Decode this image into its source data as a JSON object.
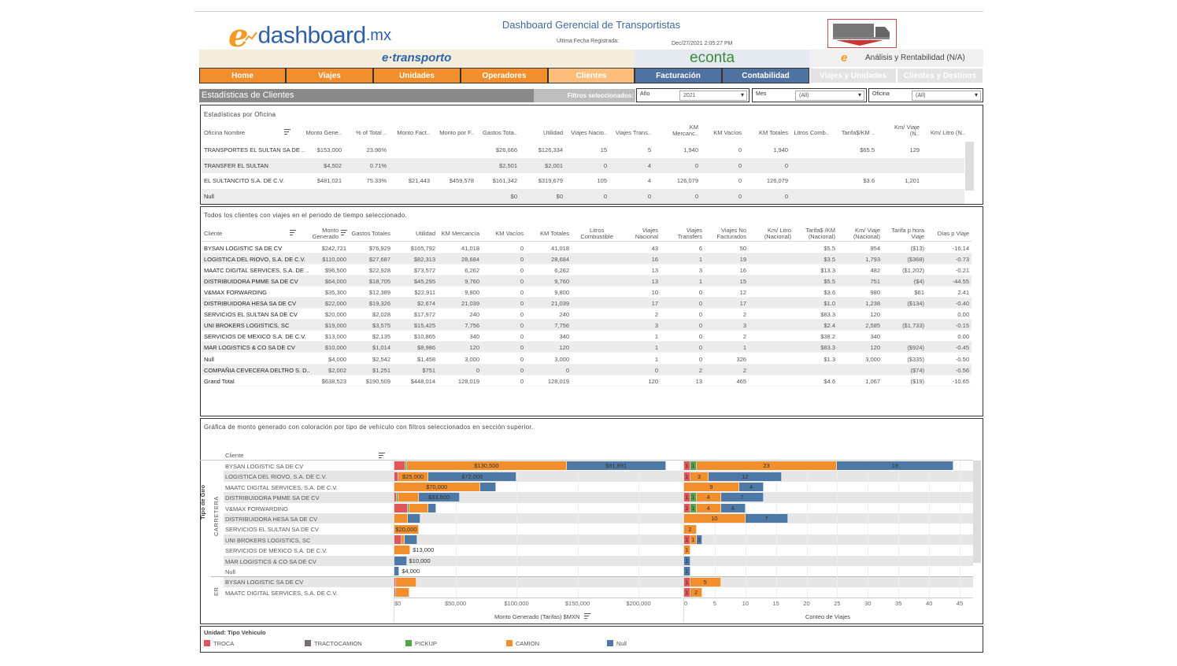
{
  "header": {
    "logo": {
      "e": "e",
      "name": "dashboard",
      "tld": ".mx"
    },
    "title": "Dashboard Gerencial de Transportistas",
    "last_date_label": "Última Fecha Registrada:",
    "last_date_value": "Dec/27/2021 2:05:27 PM",
    "bands": {
      "etransporto": "e·transporto",
      "econta": "econta",
      "analisis": "Análisis y Rentabilidad (N/A)"
    }
  },
  "nav": [
    {
      "label": "Home",
      "color": "#F28E2B",
      "active": false
    },
    {
      "label": "Viajes",
      "color": "#F28E2B",
      "active": false
    },
    {
      "label": "Unidades",
      "color": "#F28E2B",
      "active": false
    },
    {
      "label": "Operadores",
      "color": "#F28E2B",
      "active": false
    },
    {
      "label": "Clientes",
      "color": "#FDBE7C",
      "active": true
    },
    {
      "label": "Facturación",
      "color": "#4F72A0",
      "active": false
    },
    {
      "label": "Contabilidad",
      "color": "#4F72A0",
      "active": false
    },
    {
      "label": "Viajes y Unidades",
      "color": "#E3E3E3",
      "active": false
    },
    {
      "label": "Clientes y Destinos",
      "color": "#E3E3E3",
      "active": false
    }
  ],
  "section": {
    "title": "Estadísticas de Clientes",
    "filters_label": "Filtros seleccionados:",
    "filters": [
      {
        "label": "Año",
        "value": "2021"
      },
      {
        "label": "Mes",
        "value": "(All)"
      },
      {
        "label": "Oficina",
        "value": "(All)"
      }
    ]
  },
  "office_table": {
    "title": "Estadísticas por Oficina",
    "headers": [
      "Oficina Nombre",
      "Monto Gene..",
      "% of Total ..",
      "Monto Fact..",
      "Monto por F..",
      "Gastos Tota..",
      "Utilidad",
      "Viajes Nacio..",
      "Viajes Trans..",
      "KM\nMercanc..",
      "KM Vacíos",
      "KM Totales",
      "Litros Comb..",
      "Tarifa$/KM ..",
      "Km/ Viaje\n(N..",
      "Km/ Litro (N.."
    ],
    "rows": [
      [
        "TRANSPORTES EL SULTAN SA DE ..",
        "$153,000",
        "23.96%",
        "",
        "",
        "$26,666",
        "$126,334",
        "15",
        "5",
        "1,940",
        "0",
        "1,940",
        "",
        "$65.5",
        "129",
        ""
      ],
      [
        "TRANSFER EL SULTAN",
        "$4,502",
        "0.71%",
        "",
        "",
        "$2,501",
        "$2,001",
        "0",
        "4",
        "0",
        "0",
        "0",
        "",
        "",
        "",
        ""
      ],
      [
        "EL SULTANCITO S.A. DE C.V.",
        "$481,021",
        "75.33%",
        "$21,443",
        "$459,578",
        "$161,342",
        "$319,679",
        "105",
        "4",
        "126,079",
        "0",
        "126,079",
        "",
        "$3.6",
        "1,201",
        ""
      ],
      [
        "Null",
        "",
        "",
        "",
        "",
        "$0",
        "$0",
        "0",
        "0",
        "0",
        "0",
        "0",
        "",
        "",
        "",
        ""
      ]
    ]
  },
  "client_table": {
    "title": "Todos los clientes con viajes en el periodo de tiempo seleccionado.",
    "headers": [
      "Cliente",
      "Monto\nGenerado",
      "Gastos Totales",
      "Utilidad",
      "KM Mercancía",
      "KM Vacíos",
      "KM Totales",
      "Litros\nCombustible",
      "Viajes\nNacional",
      "Viajes\nTransfers",
      "Viajes No\nFacturados",
      "Km/ Litro\n(Nacional)",
      "Tarifa$ /KM\n(Nacional)",
      "Km/ Viaje\n(Nacional)",
      "Tarifa p hora\nViaje",
      "Días p Viaje"
    ],
    "rows": [
      [
        "BYSAN LOGISTIC SA DE CV",
        "$242,721",
        "$76,929",
        "$165,792",
        "41,018",
        "0",
        "41,018",
        "",
        "43",
        "6",
        "50",
        "",
        "$5.5",
        "954",
        "($13)",
        "-16.14"
      ],
      [
        "LOGISTICA DEL RIOVO, S.A. DE C.V.",
        "$110,000",
        "$27,687",
        "$82,313",
        "28,684",
        "0",
        "28,684",
        "",
        "16",
        "1",
        "19",
        "",
        "$3.5",
        "1,793",
        "($368)",
        "-0.73"
      ],
      [
        "MAATC DIGITAL SERVICES, S.A. DE ..",
        "$96,500",
        "$22,928",
        "$73,572",
        "6,262",
        "0",
        "6,262",
        "",
        "13",
        "3",
        "16",
        "",
        "$13.3",
        "482",
        "($1,202)",
        "-0.21"
      ],
      [
        "DISTRIBUIDORA PMME SA DE CV",
        "$64,000",
        "$18,705",
        "$45,295",
        "9,760",
        "0",
        "9,760",
        "",
        "13",
        "1",
        "15",
        "",
        "$5.5",
        "751",
        "($4)",
        "-44.55"
      ],
      [
        "V&MAX FORWARDING",
        "$35,300",
        "$12,389",
        "$22,911",
        "9,800",
        "0",
        "9,800",
        "",
        "10",
        "0",
        "12",
        "",
        "$3.6",
        "980",
        "$61",
        "2.41"
      ],
      [
        "DISTRIBUIDORA HESA SA DE CV",
        "$22,000",
        "$19,326",
        "$2,674",
        "21,039",
        "0",
        "21,039",
        "",
        "17",
        "0",
        "17",
        "",
        "$1.0",
        "1,238",
        "($134)",
        "-0.40"
      ],
      [
        "SERVICIOS EL SULTAN SA DE CV",
        "$20,000",
        "$2,028",
        "$17,972",
        "240",
        "0",
        "240",
        "",
        "2",
        "0",
        "2",
        "",
        "$83.3",
        "120",
        "",
        "0.00"
      ],
      [
        "UNI BROKERS LOGISTICS, SC",
        "$19,000",
        "$3,575",
        "$15,425",
        "7,756",
        "0",
        "7,756",
        "",
        "3",
        "0",
        "3",
        "",
        "$2.4",
        "2,585",
        "($1,733)",
        "-0.15"
      ],
      [
        "SERVICIOS DE MEXICO S.A. DE C.V.",
        "$13,000",
        "$2,135",
        "$10,865",
        "340",
        "0",
        "340",
        "",
        "1",
        "0",
        "2",
        "",
        "$38.2",
        "340",
        "",
        "0.00"
      ],
      [
        "MAR LOGISTICS & CO SA DE CV",
        "$10,000",
        "$1,014",
        "$8,986",
        "120",
        "0",
        "120",
        "",
        "1",
        "0",
        "1",
        "",
        "$83.3",
        "120",
        "($924)",
        "-0.45"
      ],
      [
        "Null",
        "$4,000",
        "$2,542",
        "$1,458",
        "3,000",
        "0",
        "3,000",
        "",
        "1",
        "0",
        "326",
        "",
        "$1.3",
        "3,000",
        "($335)",
        "-0.50"
      ],
      [
        "COMPAÑIA CEVECERA DELTRO S. D..",
        "$2,002",
        "$1,251",
        "$751",
        "0",
        "0",
        "0",
        "",
        "0",
        "2",
        "2",
        "",
        "",
        "",
        "($74)",
        "-0.56"
      ],
      [
        "Grand Total",
        "$638,523",
        "$190,509",
        "$448,014",
        "128,019",
        "0",
        "128,019",
        "",
        "120",
        "13",
        "465",
        "",
        "$4.6",
        "1,067",
        "($19)",
        "-10.65"
      ]
    ]
  },
  "chart_panel": {
    "title": "Gráfica de monto generado con coloración por tipo de vehículo con filtros seleccionados en sección superior.",
    "row_header": "Cliente",
    "group_axis_label": "Tipo de Giro",
    "groups": [
      {
        "label": "CARRETERA",
        "rows": 11
      },
      {
        "label": "ER",
        "rows": 2
      }
    ]
  },
  "chart_data": [
    {
      "type": "bar",
      "orientation": "horizontal",
      "stacked": true,
      "xlabel": "Monto Generado (Tarifas) $MXN",
      "xlim": [
        0,
        235000
      ],
      "ticks": [
        {
          "v": 0,
          "label": "$0"
        },
        {
          "v": 50000,
          "label": "$50,000"
        },
        {
          "v": 100000,
          "label": "$100,000"
        },
        {
          "v": 150000,
          "label": "$150,000"
        },
        {
          "v": 200000,
          "label": "$200,000"
        }
      ],
      "grid": true,
      "categories": [
        "BYSAN LOGISTIC SA DE CV",
        "LOGISTICA DEL RIOVO, S.A. DE C.V.",
        "MAATC DIGITAL SERVICES, S.A. DE C.V.",
        "DISTRIBUIDORA PMME SA DE CV",
        "V&MAX FORWARDING",
        "DISTRIBUIDORA HESA SA DE CV",
        "SERVICIOS EL SULTAN SA DE CV",
        "UNI BROKERS LOGISTICS, SC",
        "SERVICIOS DE MEXICO S.A. DE C.V.",
        "MAR LOGISTICS & CO SA DE CV",
        "Null",
        "BYSAN LOGISTIC SA DE CV",
        "MAATC DIGITAL SERVICES, S.A. DE C.V."
      ],
      "rows": [
        {
          "segments": [
            [
              "TROCA",
              9000,
              ""
            ],
            [
              "PICKUP",
              1500,
              ""
            ],
            [
              "CAMION",
              130500,
              "$130,500"
            ],
            [
              "Null",
              81891,
              "$81,891"
            ]
          ]
        },
        {
          "segments": [
            [
              "TROCA",
              3000,
              ""
            ],
            [
              "CAMION",
              25000,
              "$25,000"
            ],
            [
              "Null",
              72000,
              "$72,000"
            ]
          ]
        },
        {
          "segments": [
            [
              "CAMION",
              70000,
              "$70,000"
            ],
            [
              "Null",
              13500,
              ""
            ]
          ]
        },
        {
          "segments": [
            [
              "TROCA",
              1800,
              ""
            ],
            [
              "PICKUP",
              1200,
              ""
            ],
            [
              "CAMION",
              17000,
              ""
            ],
            [
              "Null",
              33500,
              "$33,500"
            ]
          ]
        },
        {
          "segments": [
            [
              "TROCA",
              11000,
              ""
            ],
            [
              "PICKUP",
              1500,
              ""
            ],
            [
              "CAMION",
              15500,
              ""
            ],
            [
              "Null",
              6300,
              ""
            ]
          ]
        },
        {
          "segments": [
            [
              "CAMION",
              11000,
              ""
            ],
            [
              "Null",
              10500,
              ""
            ]
          ]
        },
        {
          "segments": [
            [
              "CAMION",
              20000,
              "$20,000"
            ]
          ]
        },
        {
          "segments": [
            [
              "TROCA",
              5500,
              ""
            ],
            [
              "CAMION",
              3000,
              ""
            ],
            [
              "Null",
              10000,
              ""
            ]
          ]
        },
        {
          "segments": [
            [
              "CAMION",
              13000,
              ""
            ]
          ],
          "total_label": "$13,000"
        },
        {
          "segments": [
            [
              "Null",
              10000,
              ""
            ]
          ],
          "total_label": "$10,000"
        },
        {
          "segments": [
            [
              "Null",
              4000,
              ""
            ]
          ],
          "total_label": "$4,000"
        },
        {
          "segments": [
            [
              "TROCA",
              1500,
              ""
            ],
            [
              "CAMION",
              16500,
              ""
            ]
          ]
        },
        {
          "segments": [
            [
              "TROCA",
              1500,
              ""
            ],
            [
              "CAMION",
              10500,
              ""
            ]
          ]
        }
      ]
    },
    {
      "type": "bar",
      "orientation": "horizontal",
      "stacked": true,
      "xlabel": "Conteo de Viajes",
      "xlim": [
        0,
        47
      ],
      "ticks": [
        {
          "v": 0,
          "label": "0"
        },
        {
          "v": 5,
          "label": "5"
        },
        {
          "v": 10,
          "label": "10"
        },
        {
          "v": 15,
          "label": "15"
        },
        {
          "v": 20,
          "label": "20"
        },
        {
          "v": 25,
          "label": "25"
        },
        {
          "v": 30,
          "label": "30"
        },
        {
          "v": 35,
          "label": "35"
        },
        {
          "v": 40,
          "label": "40"
        },
        {
          "v": 45,
          "label": "45"
        }
      ],
      "grid": true,
      "rows": [
        {
          "segments": [
            [
              "TROCA",
              1,
              "1"
            ],
            [
              "PICKUP",
              1,
              "1"
            ],
            [
              "CAMION",
              23,
              "23"
            ],
            [
              "Null",
              19,
              "19"
            ]
          ]
        },
        {
          "segments": [
            [
              "TROCA",
              1,
              "1"
            ],
            [
              "CAMION",
              3,
              "3"
            ],
            [
              "Null",
              12,
              "12"
            ]
          ]
        },
        {
          "segments": [
            [
              "CAMION",
              9,
              "9"
            ],
            [
              "Null",
              4,
              "4"
            ]
          ]
        },
        {
          "segments": [
            [
              "TROCA",
              1,
              "1"
            ],
            [
              "PICKUP",
              1,
              "1"
            ],
            [
              "CAMION",
              4,
              "4"
            ],
            [
              "Null",
              7,
              "7"
            ]
          ]
        },
        {
          "segments": [
            [
              "TROCA",
              1,
              "1"
            ],
            [
              "PICKUP",
              1,
              "1"
            ],
            [
              "CAMION",
              4,
              "4"
            ],
            [
              "Null",
              4,
              "4"
            ]
          ]
        },
        {
          "segments": [
            [
              "CAMION",
              10,
              "10"
            ],
            [
              "Null",
              7,
              "7"
            ]
          ]
        },
        {
          "segments": [
            [
              "CAMION",
              2,
              "2"
            ]
          ]
        },
        {
          "segments": [
            [
              "TROCA",
              1,
              "1"
            ],
            [
              "CAMION",
              1,
              "1"
            ],
            [
              "Null",
              1,
              "1"
            ]
          ]
        },
        {
          "segments": [
            [
              "CAMION",
              1,
              "1"
            ]
          ]
        },
        {
          "segments": [
            [
              "Null",
              1,
              "1"
            ]
          ]
        },
        {
          "segments": [
            [
              "Null",
              1,
              "1"
            ]
          ]
        },
        {
          "segments": [
            [
              "TROCA",
              1,
              "1"
            ],
            [
              "CAMION",
              5,
              "5"
            ]
          ]
        },
        {
          "segments": [
            [
              "TROCA",
              1,
              "1"
            ],
            [
              "CAMION",
              2,
              "2"
            ]
          ]
        }
      ]
    }
  ],
  "legend": {
    "title": "Unidad: Tipo Vehiculo",
    "items": [
      {
        "label": "TROCA",
        "color": "#E15759"
      },
      {
        "label": "TRACTOCAMION",
        "color": "#79706E"
      },
      {
        "label": "PICKUP",
        "color": "#59A14F"
      },
      {
        "label": "CAMION",
        "color": "#F28E2B"
      },
      {
        "label": "Null",
        "color": "#4E79A7"
      }
    ]
  }
}
